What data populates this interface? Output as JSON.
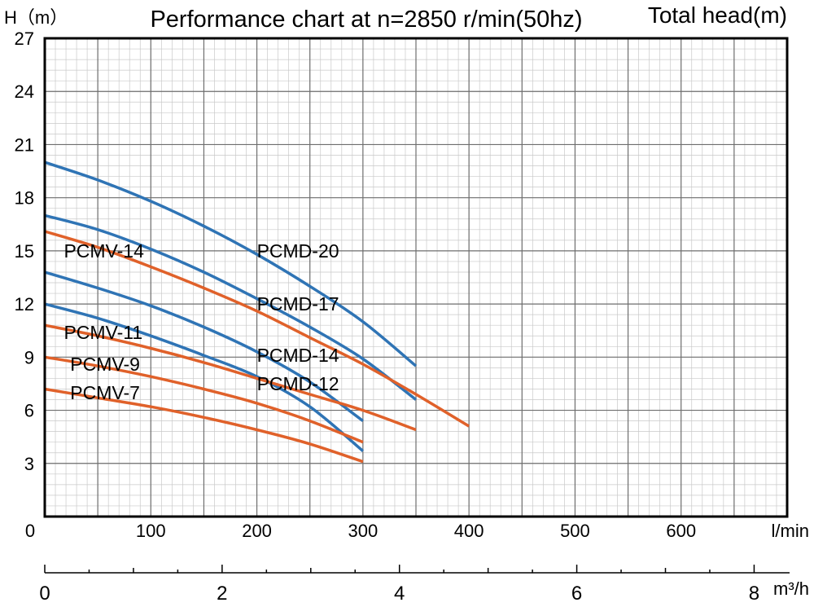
{
  "chart_data": {
    "type": "line",
    "title": "Performance chart at n=2850 r/min(50hz)",
    "ylabel": "H（m）",
    "ylabel_right": "Total head(m)",
    "xlabel": "l/min",
    "xlabel_secondary": "m³/h",
    "xlim": [
      0,
      700
    ],
    "ylim": [
      0,
      27
    ],
    "secondary_xlim": [
      0,
      8.4
    ],
    "x_ticks": [
      0,
      100,
      200,
      300,
      400,
      500,
      600
    ],
    "x_tick_labels": [
      "0",
      "100",
      "200",
      "300",
      "400",
      "500",
      "600"
    ],
    "y_ticks": [
      3,
      6,
      9,
      12,
      15,
      18,
      21,
      24,
      27
    ],
    "y_tick_labels": [
      "3",
      "6",
      "9",
      "12",
      "15",
      "18",
      "21",
      "24",
      "27"
    ],
    "secondary_x_ticks": [
      0,
      2,
      4,
      6,
      8
    ],
    "secondary_x_tick_labels": [
      "0",
      "2",
      "4",
      "6",
      "8"
    ],
    "grid": true,
    "series": [
      {
        "name": "PCMD-20",
        "color": "#2f74b5",
        "x": [
          0,
          50,
          100,
          150,
          200,
          250,
          300,
          350
        ],
        "y": [
          20.0,
          19.0,
          17.8,
          16.4,
          14.8,
          13.0,
          11.0,
          8.5
        ],
        "label_at": [
          200,
          15.0
        ]
      },
      {
        "name": "PCMD-17",
        "color": "#2f74b5",
        "x": [
          0,
          50,
          100,
          150,
          200,
          250,
          300,
          350
        ],
        "y": [
          17.0,
          16.2,
          15.1,
          13.8,
          12.3,
          10.7,
          8.9,
          6.6
        ],
        "label_at": [
          200,
          12.0
        ]
      },
      {
        "name": "PCMV-14",
        "color": "#e0612a",
        "x": [
          0,
          50,
          100,
          150,
          200,
          250,
          300,
          350,
          400
        ],
        "y": [
          16.1,
          15.2,
          14.1,
          12.9,
          11.6,
          10.1,
          8.6,
          6.9,
          5.1
        ],
        "label_at": [
          18,
          15.0
        ]
      },
      {
        "name": "PCMD-14",
        "color": "#2f74b5",
        "x": [
          0,
          50,
          100,
          150,
          200,
          250,
          300
        ],
        "y": [
          13.8,
          12.9,
          11.9,
          10.7,
          9.3,
          7.6,
          5.4
        ],
        "label_at": [
          200,
          9.1
        ]
      },
      {
        "name": "PCMD-12",
        "color": "#2f74b5",
        "x": [
          0,
          50,
          100,
          150,
          200,
          250,
          300
        ],
        "y": [
          12.0,
          11.2,
          10.2,
          9.1,
          7.9,
          6.2,
          3.7
        ],
        "label_at": [
          200,
          7.5
        ]
      },
      {
        "name": "PCMV-11",
        "color": "#e0612a",
        "x": [
          0,
          50,
          100,
          150,
          200,
          250,
          300,
          350
        ],
        "y": [
          10.8,
          10.2,
          9.5,
          8.7,
          7.8,
          6.9,
          6.0,
          4.9
        ],
        "label_at": [
          18,
          10.4
        ]
      },
      {
        "name": "PCMV-9",
        "color": "#e0612a",
        "x": [
          0,
          50,
          100,
          150,
          200,
          250,
          300
        ],
        "y": [
          9.0,
          8.5,
          7.9,
          7.2,
          6.4,
          5.4,
          4.2
        ],
        "label_at": [
          24,
          8.6
        ]
      },
      {
        "name": "PCMV-7",
        "color": "#e0612a",
        "x": [
          0,
          50,
          100,
          150,
          200,
          250,
          300
        ],
        "y": [
          7.2,
          6.7,
          6.2,
          5.6,
          4.9,
          4.1,
          3.1
        ],
        "label_at": [
          24,
          7.0
        ]
      }
    ]
  }
}
